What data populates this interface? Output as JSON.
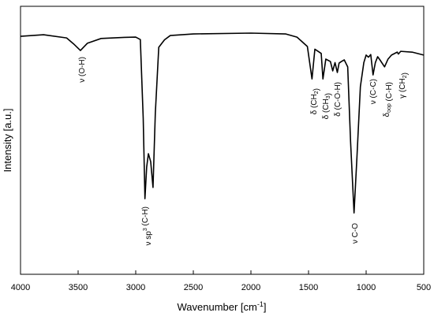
{
  "chart_data": {
    "type": "line",
    "xlabel": "Wavenumber [cm",
    "xlabel_sup": "-1",
    "xlabel_end": "]",
    "ylabel": "Intensity [a.u.]",
    "xlim": [
      4000,
      500
    ],
    "ylim": [
      0,
      100
    ],
    "xticks": [
      4000,
      3500,
      3000,
      2500,
      2000,
      1500,
      1000,
      500
    ],
    "grid": false,
    "series": [
      {
        "name": "spectrum",
        "color": "#000000",
        "x": [
          4000,
          3800,
          3600,
          3540,
          3480,
          3420,
          3300,
          3100,
          3000,
          2960,
          2935,
          2920,
          2905,
          2890,
          2870,
          2850,
          2830,
          2800,
          2750,
          2700,
          2500,
          2000,
          1700,
          1600,
          1510,
          1470,
          1445,
          1410,
          1390,
          1375,
          1350,
          1310,
          1290,
          1270,
          1250,
          1235,
          1215,
          1190,
          1160,
          1135,
          1105,
          1080,
          1050,
          1020,
          1000,
          980,
          960,
          940,
          920,
          900,
          880,
          840,
          810,
          780,
          730,
          720,
          700,
          600,
          500
        ],
        "values": [
          88.8,
          89.4,
          88.2,
          86,
          83.5,
          86.2,
          88,
          88.4,
          88.5,
          87.6,
          58.2,
          28.2,
          40,
          45,
          42,
          32.4,
          60,
          84.7,
          87.5,
          89.1,
          89.7,
          90,
          89.7,
          88.5,
          85,
          72.9,
          84,
          83,
          82.4,
          72.9,
          80.3,
          79.4,
          75.9,
          79,
          75.3,
          78.8,
          79.4,
          80,
          77.4,
          49.4,
          22.9,
          43.5,
          70,
          79,
          81.8,
          81,
          82,
          74.4,
          79,
          81.2,
          80,
          77.4,
          80.3,
          81.8,
          82.9,
          82.2,
          83.2,
          82.9,
          81.8
        ]
      }
    ],
    "annotations": [
      [
        "ν (O-H)"
      ],
      [
        "ν sp",
        {
          "sup": "3"
        },
        " (C-H)"
      ],
      [
        "δ (CH",
        {
          "sub": "2"
        },
        ")"
      ],
      [
        "δ (CH",
        {
          "sub": "3"
        },
        ")"
      ],
      [
        "δ (C-O-H)"
      ],
      [
        "ν C-O"
      ],
      [
        "ν (C-C)"
      ],
      [
        "δ",
        {
          "sub": "oop"
        },
        " (C-H)"
      ],
      [
        "γ (CH",
        {
          "sub": "2"
        },
        ")"
      ]
    ]
  }
}
